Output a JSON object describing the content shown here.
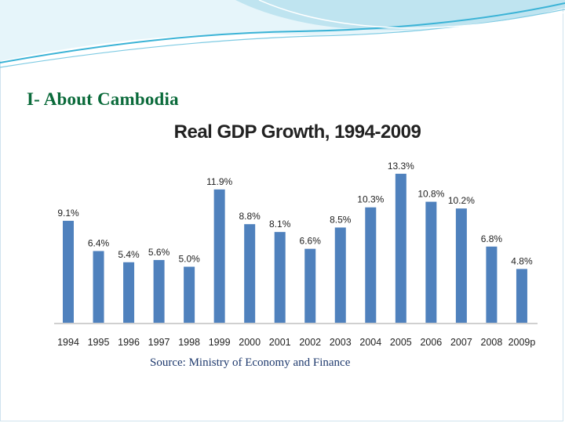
{
  "slide": {
    "title": "I- About Cambodia",
    "source": "Source: Ministry of Economy and Finance"
  },
  "colors": {
    "bar": "#4f81bd",
    "title": "#0a6a3a",
    "source": "#1f3a6e",
    "wave_primary": "#3bb3d6",
    "wave_light": "#bfe4f0"
  },
  "chart_data": {
    "type": "bar",
    "title": "Real GDP Growth, 1994-2009",
    "categories": [
      "1994",
      "1995",
      "1996",
      "1997",
      "1998",
      "1999",
      "2000",
      "2001",
      "2002",
      "2003",
      "2004",
      "2005",
      "2006",
      "2007",
      "2008",
      "2009p"
    ],
    "values": [
      9.1,
      6.4,
      5.4,
      5.6,
      5.0,
      11.9,
      8.8,
      8.1,
      6.6,
      8.5,
      10.3,
      13.3,
      10.8,
      10.2,
      6.8,
      4.8
    ],
    "data_labels": [
      "9.1%",
      "6.4%",
      "5.4%",
      "5.6%",
      "5.0%",
      "11.9%",
      "8.8%",
      "8.1%",
      "6.6%",
      "8.5%",
      "10.3%",
      "13.3%",
      "10.8%",
      "10.2%",
      "6.8%",
      "4.8%"
    ],
    "xlabel": "",
    "ylabel": "",
    "ylim": [
      0,
      14
    ],
    "grid": false,
    "legend": "none"
  }
}
